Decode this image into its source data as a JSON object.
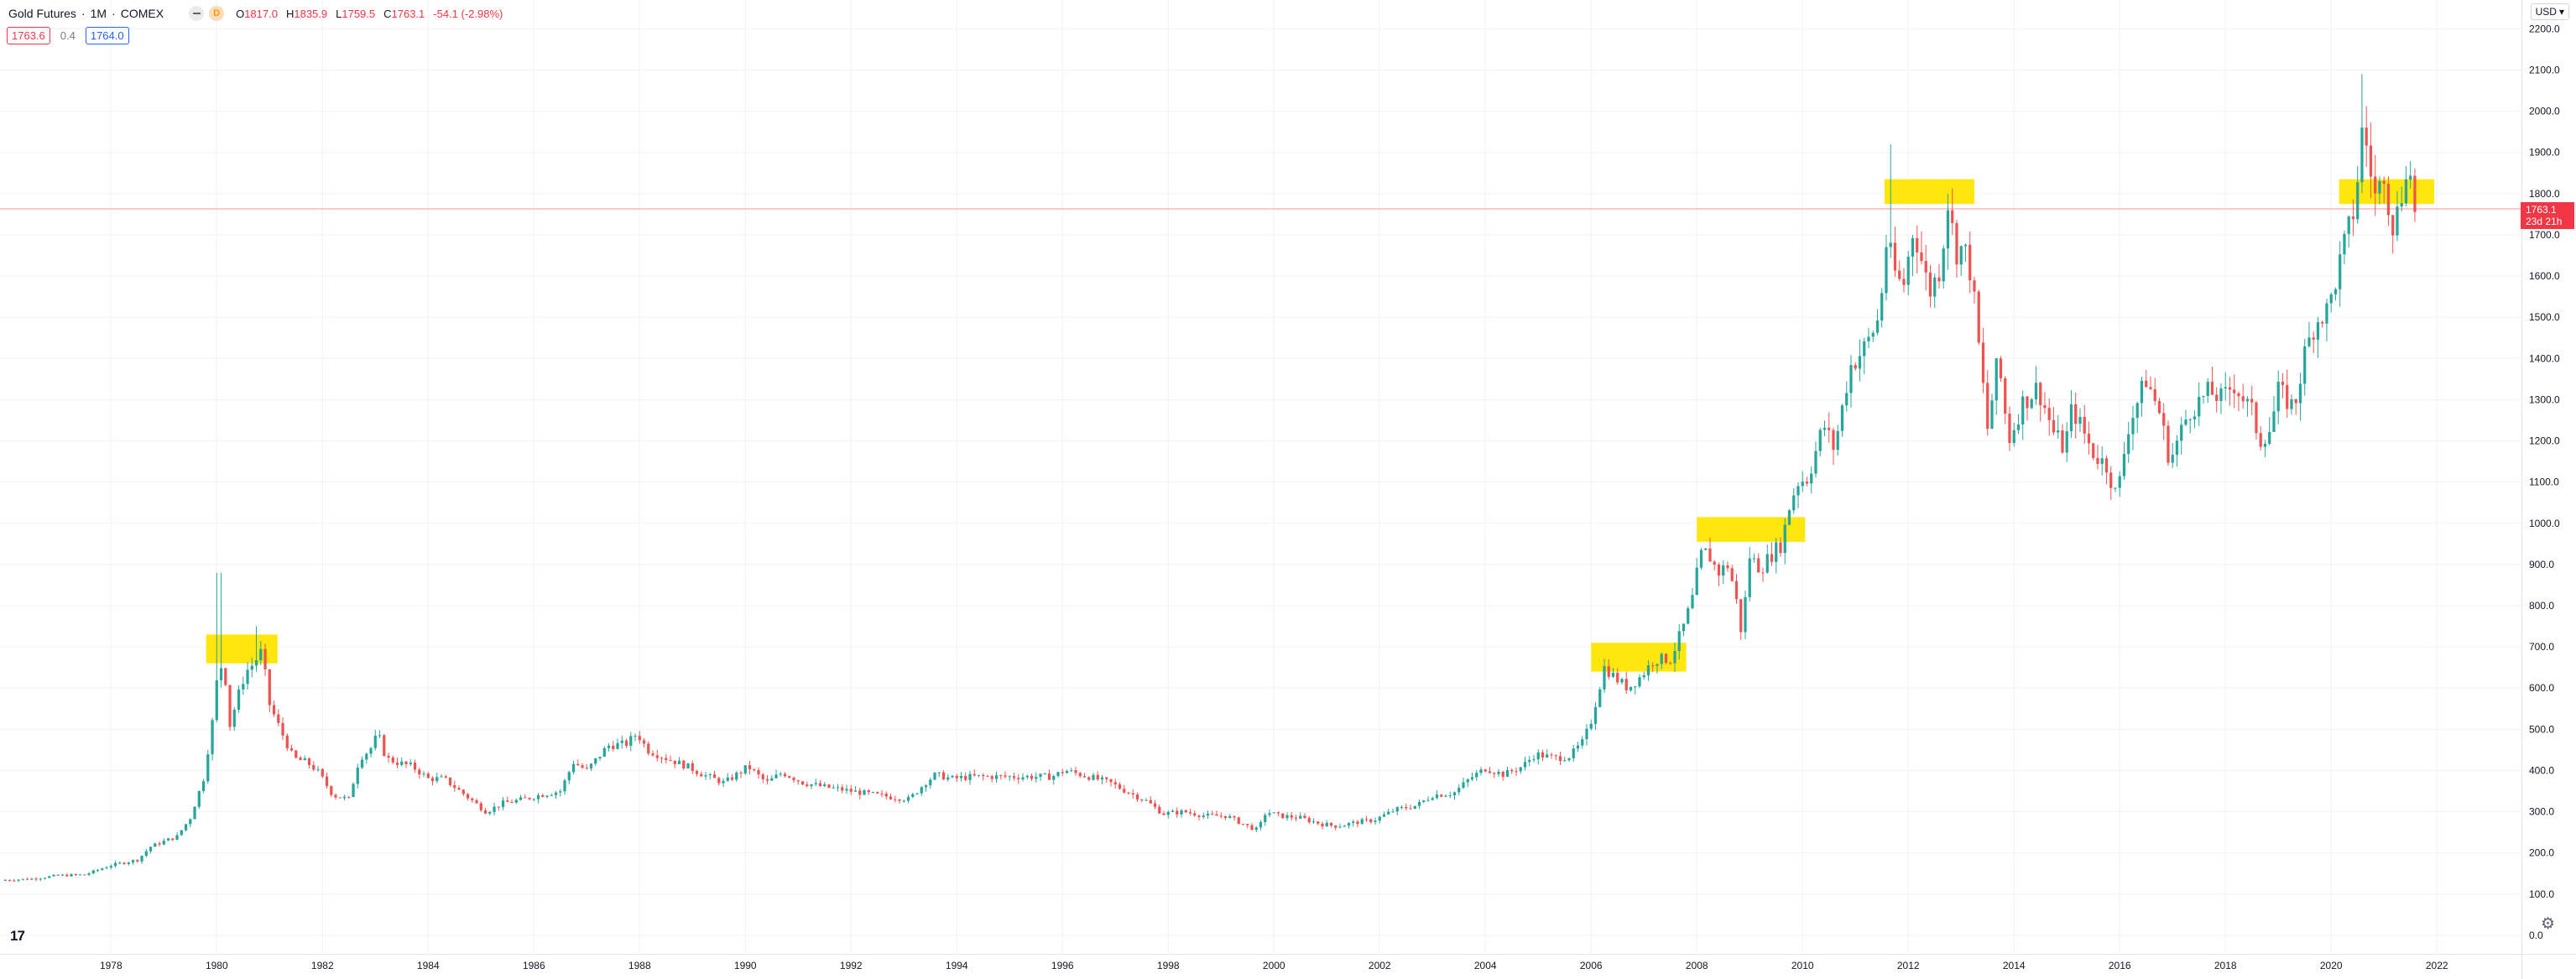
{
  "symbol": {
    "name": "Gold Futures",
    "interval": "1M",
    "exchange": "COMEX",
    "source_badge": "D"
  },
  "ohlc": {
    "o_label": "O",
    "o": "1817.0",
    "h_label": "H",
    "h": "1835.9",
    "l_label": "L",
    "l": "1759.5",
    "c_label": "C",
    "c": "1763.1",
    "change": "-54.1 (-2.98%)"
  },
  "quote": {
    "bid": "1763.6",
    "spread": "0.4",
    "ask": "1764.0"
  },
  "currency": "USD",
  "last_price": {
    "value": "1763.1",
    "countdown": "23d 21h"
  },
  "colors": {
    "up": "#26a69a",
    "down": "#ef5350",
    "highlight": "#ffe600",
    "last_line": "#f23645"
  },
  "chart_data": {
    "type": "candlestick",
    "interval": "monthly",
    "xlabel": "",
    "ylabel": "",
    "yaxis_ticks": [
      "0.0",
      "100.0",
      "200.0",
      "300.0",
      "400.0",
      "500.0",
      "600.0",
      "700.0",
      "800.0",
      "900.0",
      "1000.0",
      "1100.0",
      "1200.0",
      "1300.0",
      "1400.0",
      "1500.0",
      "1600.0",
      "1700.0",
      "1800.0",
      "1900.0",
      "2000.0",
      "2100.0",
      "2200.0"
    ],
    "xaxis_ticks": [
      "1978",
      "1980",
      "1982",
      "1984",
      "1986",
      "1988",
      "1990",
      "1992",
      "1994",
      "1996",
      "1998",
      "2000",
      "2002",
      "2004",
      "2006",
      "2008",
      "2010",
      "2012",
      "2014",
      "2016",
      "2018",
      "2020",
      "2022"
    ],
    "ylim": [
      -45,
      2270
    ],
    "xlim": [
      1975.9,
      2023.6
    ],
    "grid": true,
    "last_price_line": 1763.1,
    "close_path": [
      [
        1976.0,
        134
      ],
      [
        1976.5,
        137
      ],
      [
        1977.0,
        145
      ],
      [
        1977.5,
        147
      ],
      [
        1978.0,
        170
      ],
      [
        1978.5,
        183
      ],
      [
        1978.75,
        215
      ],
      [
        1979.0,
        228
      ],
      [
        1979.25,
        240
      ],
      [
        1979.5,
        285
      ],
      [
        1979.75,
        380
      ],
      [
        1979.92,
        520
      ],
      [
        1980.04,
        660
      ],
      [
        1980.15,
        640
      ],
      [
        1980.25,
        510
      ],
      [
        1980.4,
        580
      ],
      [
        1980.55,
        640
      ],
      [
        1980.7,
        660
      ],
      [
        1980.85,
        690
      ],
      [
        1981.0,
        560
      ],
      [
        1981.2,
        500
      ],
      [
        1981.45,
        430
      ],
      [
        1981.7,
        420
      ],
      [
        1981.9,
        400
      ],
      [
        1982.2,
        340
      ],
      [
        1982.5,
        330
      ],
      [
        1982.7,
        430
      ],
      [
        1982.9,
        450
      ],
      [
        1983.05,
        490
      ],
      [
        1983.2,
        430
      ],
      [
        1983.4,
        420
      ],
      [
        1983.7,
        410
      ],
      [
        1984.0,
        380
      ],
      [
        1984.3,
        380
      ],
      [
        1984.6,
        350
      ],
      [
        1984.9,
        320
      ],
      [
        1985.1,
        300
      ],
      [
        1985.4,
        320
      ],
      [
        1985.8,
        330
      ],
      [
        1986.1,
        340
      ],
      [
        1986.5,
        350
      ],
      [
        1986.75,
        420
      ],
      [
        1987.0,
        400
      ],
      [
        1987.4,
        460
      ],
      [
        1987.75,
        465
      ],
      [
        1987.95,
        490
      ],
      [
        1988.15,
        450
      ],
      [
        1988.5,
        430
      ],
      [
        1988.9,
        410
      ],
      [
        1989.2,
        390
      ],
      [
        1989.6,
        370
      ],
      [
        1989.95,
        400
      ],
      [
        1990.05,
        410
      ],
      [
        1990.4,
        370
      ],
      [
        1990.7,
        395
      ],
      [
        1991.1,
        370
      ],
      [
        1991.5,
        360
      ],
      [
        1992.0,
        350
      ],
      [
        1992.5,
        340
      ],
      [
        1992.8,
        335
      ],
      [
        1993.1,
        330
      ],
      [
        1993.4,
        370
      ],
      [
        1993.6,
        390
      ],
      [
        1993.9,
        380
      ],
      [
        1994.3,
        385
      ],
      [
        1994.8,
        385
      ],
      [
        1995.3,
        385
      ],
      [
        1995.8,
        385
      ],
      [
        1996.05,
        400
      ],
      [
        1996.5,
        385
      ],
      [
        1996.9,
        370
      ],
      [
        1997.2,
        350
      ],
      [
        1997.6,
        325
      ],
      [
        1997.9,
        295
      ],
      [
        1998.3,
        300
      ],
      [
        1998.7,
        290
      ],
      [
        1999.1,
        290
      ],
      [
        1999.5,
        265
      ],
      [
        1999.7,
        255
      ],
      [
        1999.85,
        300
      ],
      [
        2000.1,
        290
      ],
      [
        2000.5,
        285
      ],
      [
        2000.9,
        270
      ],
      [
        2001.2,
        265
      ],
      [
        2001.6,
        275
      ],
      [
        2001.9,
        280
      ],
      [
        2002.3,
        305
      ],
      [
        2002.7,
        315
      ],
      [
        2003.0,
        340
      ],
      [
        2003.4,
        345
      ],
      [
        2003.7,
        380
      ],
      [
        2004.0,
        405
      ],
      [
        2004.35,
        390
      ],
      [
        2004.7,
        410
      ],
      [
        2004.95,
        440
      ],
      [
        2005.3,
        430
      ],
      [
        2005.6,
        435
      ],
      [
        2005.85,
        470
      ],
      [
        2006.0,
        520
      ],
      [
        2006.25,
        650
      ],
      [
        2006.5,
        620
      ],
      [
        2006.7,
        600
      ],
      [
        2006.95,
        630
      ],
      [
        2007.2,
        670
      ],
      [
        2007.5,
        670
      ],
      [
        2007.75,
        750
      ],
      [
        2007.95,
        830
      ],
      [
        2008.05,
        920
      ],
      [
        2008.2,
        930
      ],
      [
        2008.4,
        880
      ],
      [
        2008.6,
        900
      ],
      [
        2008.75,
        810
      ],
      [
        2008.85,
        730
      ],
      [
        2009.0,
        920
      ],
      [
        2009.2,
        890
      ],
      [
        2009.45,
        930
      ],
      [
        2009.6,
        950
      ],
      [
        2009.75,
        1040
      ],
      [
        2009.9,
        1100
      ],
      [
        2010.1,
        1110
      ],
      [
        2010.4,
        1240
      ],
      [
        2010.6,
        1180
      ],
      [
        2010.9,
        1380
      ],
      [
        2011.2,
        1430
      ],
      [
        2011.45,
        1500
      ],
      [
        2011.6,
        1700
      ],
      [
        2011.7,
        1620
      ],
      [
        2011.9,
        1570
      ],
      [
        2012.1,
        1720
      ],
      [
        2012.4,
        1560
      ],
      [
        2012.6,
        1620
      ],
      [
        2012.75,
        1780
      ],
      [
        2012.9,
        1660
      ],
      [
        2013.05,
        1670
      ],
      [
        2013.2,
        1600
      ],
      [
        2013.3,
        1470
      ],
      [
        2013.5,
        1230
      ],
      [
        2013.7,
        1400
      ],
      [
        2013.9,
        1200
      ],
      [
        2014.15,
        1290
      ],
      [
        2014.45,
        1330
      ],
      [
        2014.75,
        1220
      ],
      [
        2014.95,
        1180
      ],
      [
        2015.1,
        1280
      ],
      [
        2015.5,
        1170
      ],
      [
        2015.75,
        1140
      ],
      [
        2015.95,
        1060
      ],
      [
        2016.15,
        1230
      ],
      [
        2016.5,
        1350
      ],
      [
        2016.75,
        1270
      ],
      [
        2016.95,
        1150
      ],
      [
        2017.3,
        1270
      ],
      [
        2017.7,
        1320
      ],
      [
        2017.95,
        1300
      ],
      [
        2018.15,
        1340
      ],
      [
        2018.5,
        1270
      ],
      [
        2018.65,
        1200
      ],
      [
        2018.85,
        1230
      ],
      [
        2019.0,
        1320
      ],
      [
        2019.3,
        1280
      ],
      [
        2019.5,
        1410
      ],
      [
        2019.7,
        1490
      ],
      [
        2019.95,
        1520
      ],
      [
        2020.2,
        1650
      ],
      [
        2020.45,
        1770
      ],
      [
        2020.6,
        1970
      ],
      [
        2020.7,
        1890
      ],
      [
        2020.85,
        1780
      ],
      [
        2021.0,
        1860
      ],
      [
        2021.15,
        1720
      ],
      [
        2021.3,
        1770
      ],
      [
        2021.45,
        1900
      ],
      [
        2021.55,
        1770
      ],
      [
        2021.62,
        1763.1
      ]
    ],
    "spikes": [
      [
        1980.04,
        880
      ],
      [
        1980.72,
        750
      ],
      [
        2011.68,
        1920
      ],
      [
        2012.75,
        1800
      ],
      [
        2020.6,
        2090
      ]
    ],
    "highlights": [
      {
        "x": [
          1979.8,
          1981.15
        ],
        "y": [
          660,
          730
        ]
      },
      {
        "x": [
          2006.0,
          2007.8
        ],
        "y": [
          640,
          710
        ]
      },
      {
        "x": [
          2008.0,
          2010.05
        ],
        "y": [
          955,
          1015
        ]
      },
      {
        "x": [
          2011.55,
          2013.25
        ],
        "y": [
          1775,
          1835
        ]
      },
      {
        "x": [
          2020.15,
          2021.95
        ],
        "y": [
          1775,
          1835
        ]
      }
    ]
  }
}
